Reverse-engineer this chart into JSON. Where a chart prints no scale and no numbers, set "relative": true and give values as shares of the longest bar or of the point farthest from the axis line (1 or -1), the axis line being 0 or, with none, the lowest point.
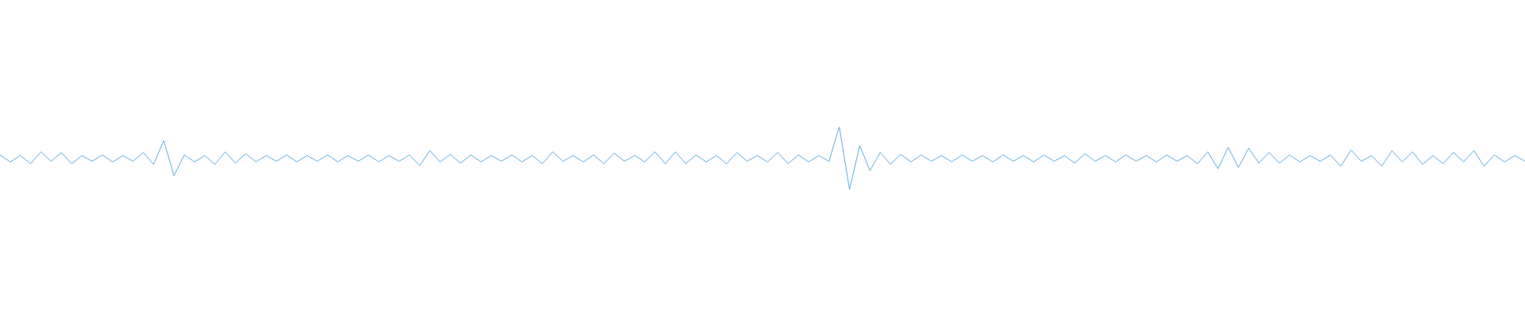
{
  "chart_data": {
    "type": "line",
    "relative": true,
    "color": "#5dade2",
    "categories": [
      null,
      null,
      null,
      null,
      null,
      null,
      null,
      null,
      null,
      null,
      null,
      null,
      null,
      null,
      null,
      null,
      null,
      null,
      null,
      null,
      null,
      null,
      null,
      null,
      null,
      null,
      null,
      null,
      null,
      null,
      null,
      null,
      null,
      null,
      null,
      null,
      null,
      null,
      null,
      null,
      null,
      null,
      null,
      null,
      null,
      null,
      null,
      null,
      null,
      null,
      null,
      null,
      null,
      null,
      null,
      null,
      null,
      null,
      null,
      null,
      null,
      null,
      null,
      null,
      null,
      null,
      null,
      null,
      null,
      null,
      null,
      null,
      null,
      null,
      null,
      null,
      null,
      null,
      null,
      null,
      null,
      null,
      null,
      null,
      null,
      null,
      null,
      null,
      null,
      null,
      null,
      null,
      null,
      null,
      null,
      null,
      null,
      null,
      null,
      null,
      null,
      null,
      null,
      null,
      null,
      null,
      null,
      null,
      null,
      null,
      null,
      null,
      null,
      null,
      null,
      null,
      null,
      null,
      null,
      null,
      null,
      null,
      null,
      null,
      null,
      null,
      null,
      null,
      null,
      null,
      null,
      null,
      null,
      null,
      null,
      null,
      null,
      null,
      null,
      null,
      null,
      null,
      null,
      null,
      null,
      null,
      null,
      null,
      null,
      null
    ],
    "values": [
      0.55,
      0.44,
      0.54,
      0.41,
      0.6,
      0.45,
      0.59,
      0.41,
      0.54,
      0.45,
      0.55,
      0.44,
      0.54,
      0.45,
      0.59,
      0.4,
      0.78,
      0.22,
      0.55,
      0.44,
      0.54,
      0.4,
      0.6,
      0.42,
      0.57,
      0.44,
      0.54,
      0.45,
      0.55,
      0.44,
      0.54,
      0.45,
      0.55,
      0.44,
      0.54,
      0.45,
      0.55,
      0.44,
      0.54,
      0.45,
      0.55,
      0.38,
      0.62,
      0.44,
      0.56,
      0.42,
      0.55,
      0.44,
      0.54,
      0.45,
      0.55,
      0.44,
      0.54,
      0.41,
      0.6,
      0.45,
      0.54,
      0.44,
      0.55,
      0.41,
      0.58,
      0.45,
      0.54,
      0.44,
      0.6,
      0.41,
      0.6,
      0.41,
      0.55,
      0.44,
      0.54,
      0.41,
      0.59,
      0.45,
      0.54,
      0.44,
      0.59,
      0.41,
      0.55,
      0.44,
      0.54,
      0.45,
      1.0,
      0.0,
      0.7,
      0.3,
      0.59,
      0.4,
      0.56,
      0.44,
      0.55,
      0.45,
      0.54,
      0.44,
      0.55,
      0.45,
      0.54,
      0.44,
      0.55,
      0.45,
      0.54,
      0.44,
      0.55,
      0.45,
      0.54,
      0.42,
      0.57,
      0.45,
      0.54,
      0.44,
      0.55,
      0.45,
      0.54,
      0.44,
      0.55,
      0.45,
      0.54,
      0.41,
      0.6,
      0.33,
      0.67,
      0.35,
      0.66,
      0.42,
      0.59,
      0.42,
      0.55,
      0.44,
      0.54,
      0.45,
      0.55,
      0.37,
      0.63,
      0.45,
      0.54,
      0.37,
      0.62,
      0.44,
      0.6,
      0.4,
      0.54,
      0.41,
      0.59,
      0.44,
      0.62,
      0.37,
      0.55,
      0.44,
      0.54,
      0.45
    ]
  }
}
